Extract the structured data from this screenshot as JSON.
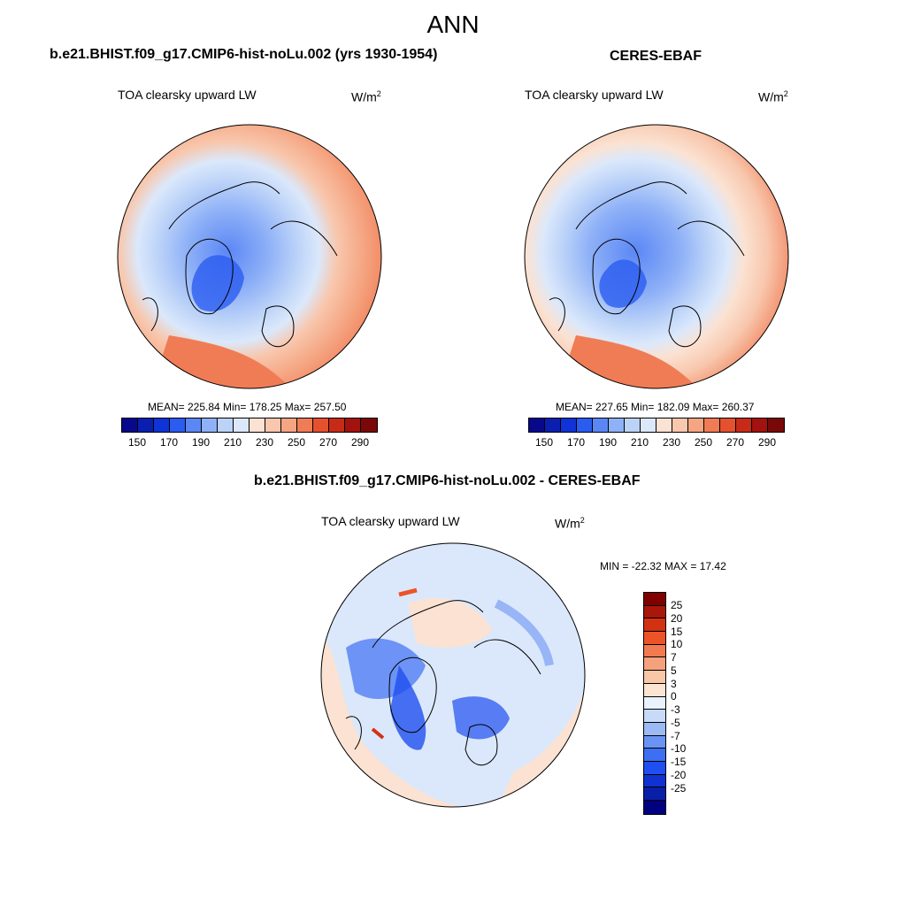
{
  "main_title": "ANN",
  "colors": {
    "abs_scale": [
      "#08088c",
      "#0a1fb0",
      "#0f33d6",
      "#2a5cf0",
      "#5b87f5",
      "#8fb1f7",
      "#bcd3f8",
      "#dbe8fb",
      "#fbe2d2",
      "#f8c7ad",
      "#f5a582",
      "#f07c55",
      "#e5512f",
      "#c72b17",
      "#a3120e",
      "#7a0808"
    ],
    "diff_scale": [
      "#000080",
      "#0a1fa8",
      "#0f33d0",
      "#1f4ff0",
      "#3d6ff2",
      "#6b93f4",
      "#9cbaf6",
      "#c7dbf8",
      "#eaf2fd",
      "#fbe4d2",
      "#f8c7a8",
      "#f5a17d",
      "#f27a50",
      "#ec5428",
      "#d33212",
      "#a8170a",
      "#800000"
    ]
  },
  "panel_left": {
    "title": "b.e21.BHIST.f09_g17.CMIP6-hist-noLu.002 (yrs 1930-1954)",
    "variable": "TOA clearsky upward LW",
    "units_base": "W/m",
    "units_exp": "2",
    "stats": "MEAN= 225.84  Min= 178.25  Max= 257.50",
    "ticks": [
      "150",
      "170",
      "190",
      "210",
      "230",
      "250",
      "270",
      "290"
    ]
  },
  "panel_right": {
    "title": "CERES-EBAF",
    "variable": "TOA clearsky upward LW",
    "units_base": "W/m",
    "units_exp": "2",
    "stats": "MEAN= 227.65  Min= 182.09  Max= 260.37",
    "ticks": [
      "150",
      "170",
      "190",
      "210",
      "230",
      "250",
      "270",
      "290"
    ]
  },
  "panel_diff": {
    "title": "b.e21.BHIST.f09_g17.CMIP6-hist-noLu.002 - CERES-EBAF",
    "variable": "TOA clearsky upward LW",
    "units_base": "W/m",
    "units_exp": "2",
    "stats": "MIN = -22.32 MAX =  17.42",
    "ticks": [
      "25",
      "20",
      "15",
      "10",
      "7",
      "5",
      "3",
      "0",
      "-3",
      "-5",
      "-7",
      "-10",
      "-15",
      "-20",
      "-25"
    ]
  }
}
